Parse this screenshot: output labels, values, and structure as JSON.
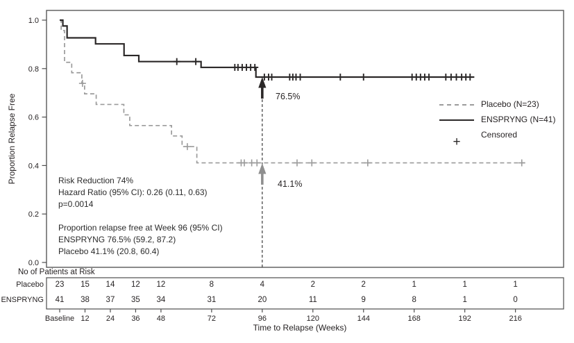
{
  "figure": {
    "y_axis_label": "Proportion Relapse Free",
    "x_axis_label": "Time to Relapse (Weeks)",
    "risk_table_title": "No of Patients at Risk"
  },
  "legend": {
    "items": [
      {
        "label": "Placebo (N=23)",
        "style": "dashed",
        "color": "#9b9b9b"
      },
      {
        "label": "ENSPRYNG (N=41)",
        "style": "solid",
        "color": "#2b2828"
      },
      {
        "label": "Censored",
        "style": "plus",
        "color": "#2b2828"
      }
    ]
  },
  "stats": {
    "lines": [
      "Risk Reduction 74%",
      "Hazard Ratio (95% CI): 0.26 (0.11, 0.63)",
      "p=0.0014",
      "",
      "Proportion relapse free at Week 96 (95% CI)",
      "ENSPRYNG 76.5% (59.2, 87.2)",
      "Placebo 41.1% (20.8, 60.4)"
    ]
  },
  "callouts": {
    "enspryng_value": "76.5%",
    "placebo_value": "41.1%",
    "reference_week": 96
  },
  "chart_data": {
    "type": "line",
    "subtype": "kaplan-meier-step",
    "title": "",
    "xlabel": "Time to Relapse (Weeks)",
    "ylabel": "Proportion Relapse Free",
    "xlim": [
      0,
      230
    ],
    "ylim": [
      0.0,
      1.0
    ],
    "grid": false,
    "legend_position": "right-middle",
    "reference_line_week": 96,
    "y_ticks": [
      {
        "label": "1.0",
        "value": 1.0
      },
      {
        "label": "0.8",
        "value": 0.8
      },
      {
        "label": "0.6",
        "value": 0.6
      },
      {
        "label": "0.4",
        "value": 0.4
      },
      {
        "label": "0.2",
        "value": 0.2
      },
      {
        "label": "0.0",
        "value": 0.0
      }
    ],
    "x_ticks": [
      {
        "label": "Baseline",
        "week": 0
      },
      {
        "label": "12",
        "week": 12
      },
      {
        "label": "24",
        "week": 24
      },
      {
        "label": "36",
        "week": 36
      },
      {
        "label": "48",
        "week": 48
      },
      {
        "label": "72",
        "week": 72
      },
      {
        "label": "96",
        "week": 96
      },
      {
        "label": "120",
        "week": 120
      },
      {
        "label": "144",
        "week": 144
      },
      {
        "label": "168",
        "week": 168
      },
      {
        "label": "192",
        "week": 192
      },
      {
        "label": "216",
        "week": 216
      }
    ],
    "series": [
      {
        "id": "placebo",
        "name": "Placebo (N=23)",
        "color": "#9b9b9b",
        "dash": "6 4",
        "width": 1.7,
        "steps": [
          [
            0,
            1.0
          ],
          [
            0.7,
            0.957
          ],
          [
            2.3,
            0.826
          ],
          [
            5.7,
            0.783
          ],
          [
            10.5,
            0.739
          ],
          [
            11.8,
            0.696
          ],
          [
            17.3,
            0.652
          ],
          [
            30.4,
            0.609
          ],
          [
            33.2,
            0.565
          ],
          [
            53,
            0.522
          ],
          [
            58,
            0.478
          ],
          [
            65,
            0.411
          ],
          [
            220.5,
            0.411
          ]
        ],
        "censored_weeks": [
          10.8,
          60.5,
          86,
          87.5,
          91,
          93.5,
          112.5,
          119.5,
          146,
          219
        ]
      },
      {
        "id": "enspryng",
        "name": "ENSPRYNG (N=41)",
        "color": "#2b2828",
        "dash": "",
        "width": 2.2,
        "steps": [
          [
            0,
            1.0
          ],
          [
            1.5,
            0.976
          ],
          [
            3.5,
            0.927
          ],
          [
            17,
            0.902
          ],
          [
            30.5,
            0.854
          ],
          [
            37.5,
            0.829
          ],
          [
            67,
            0.805
          ],
          [
            93,
            0.765
          ],
          [
            196.5,
            0.765
          ]
        ],
        "censored_weeks": [
          55.5,
          64.5,
          83,
          84.5,
          86.5,
          88.5,
          90.5,
          92.5,
          97,
          99,
          100.5,
          109,
          110.5,
          112,
          114,
          133,
          144,
          167,
          169,
          171,
          173,
          175,
          183,
          185.5,
          188,
          190.5,
          192.5,
          194.5
        ]
      }
    ],
    "annotations": [
      {
        "text": "76.5%",
        "series": "enspryng",
        "week": 96,
        "value": 0.765
      },
      {
        "text": "41.1%",
        "series": "placebo",
        "week": 96,
        "value": 0.411
      }
    ]
  },
  "risk_table": {
    "title": "No of Patients at Risk",
    "columns": [
      "Baseline",
      "12",
      "24",
      "36",
      "48",
      "72",
      "96",
      "120",
      "144",
      "168",
      "192",
      "216"
    ],
    "rows": [
      {
        "label": "Placebo",
        "values": [
          "23",
          "15",
          "14",
          "12",
          "12",
          "8",
          "4",
          "2",
          "2",
          "1",
          "1",
          "1"
        ]
      },
      {
        "label": "ENSPRYNG",
        "values": [
          "41",
          "38",
          "37",
          "35",
          "34",
          "31",
          "20",
          "11",
          "9",
          "8",
          "1",
          "0"
        ]
      }
    ]
  }
}
